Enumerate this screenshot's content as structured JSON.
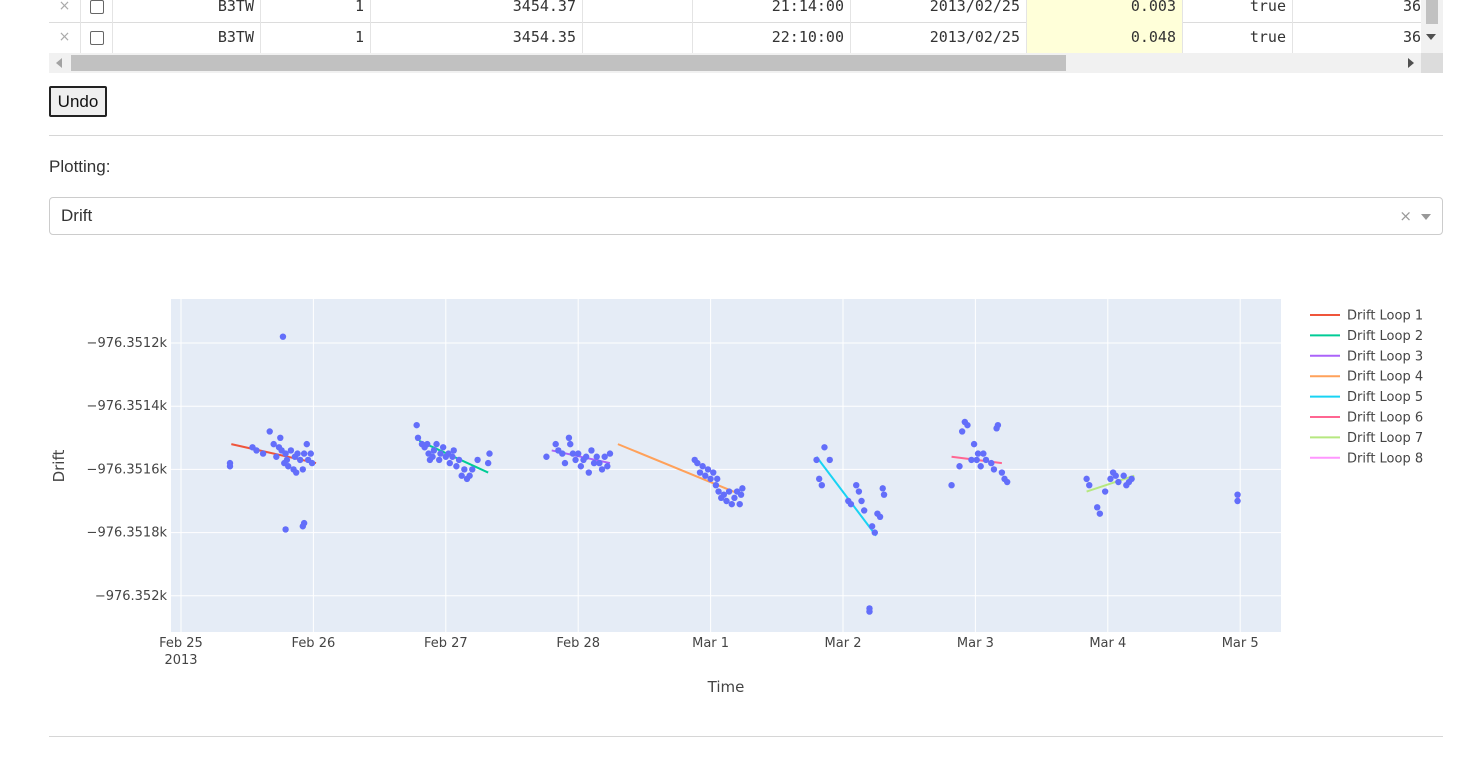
{
  "table": {
    "rows": [
      {
        "delete": "×",
        "station": "B3TW",
        "loop": "1",
        "value": "3454.37",
        "blank": "",
        "time": "21:14:00",
        "date": "2013/02/25",
        "drift": "0.003",
        "keep": "true",
        "last": "36"
      },
      {
        "delete": "×",
        "station": "B3TW",
        "loop": "1",
        "value": "3454.35",
        "blank": "",
        "time": "22:10:00",
        "date": "2013/02/25",
        "drift": "0.048",
        "keep": "true",
        "last": "36"
      }
    ]
  },
  "controls": {
    "undo_label": "Undo",
    "plotting_label": "Plotting:",
    "plot_select": {
      "value": "Drift",
      "clear": "×"
    }
  },
  "chart_data": {
    "type": "scatter",
    "xlabel": "Time",
    "ylabel": "Drift",
    "x_ticks": [
      {
        "v": 0,
        "label": "Feb 25",
        "sub": "2013"
      },
      {
        "v": 1,
        "label": "Feb 26"
      },
      {
        "v": 2,
        "label": "Feb 27"
      },
      {
        "v": 3,
        "label": "Feb 28"
      },
      {
        "v": 4,
        "label": "Mar 1"
      },
      {
        "v": 5,
        "label": "Mar 2"
      },
      {
        "v": 6,
        "label": "Mar 3"
      },
      {
        "v": 7,
        "label": "Mar 4"
      },
      {
        "v": 8,
        "label": "Mar 5"
      }
    ],
    "y_ticks": [
      {
        "v": -976.3512,
        "label": "−976.3512k"
      },
      {
        "v": -976.3514,
        "label": "−976.3514k"
      },
      {
        "v": -976.3516,
        "label": "−976.3516k"
      },
      {
        "v": -976.3518,
        "label": "−976.3518k"
      },
      {
        "v": -976.352,
        "label": "−976.352k"
      }
    ],
    "x_range_days_since_feb25": [
      -0.08,
      8.32
    ],
    "y_range": [
      -976.35211,
      -976.351
    ],
    "grid": true,
    "legend_position": "right",
    "point_color": "#636efa",
    "points": [
      [
        0.37,
        -976.35158
      ],
      [
        0.37,
        -976.35159
      ],
      [
        0.54,
        -976.35153
      ],
      [
        0.57,
        -976.35154
      ],
      [
        0.62,
        -976.35155
      ],
      [
        0.67,
        -976.35148
      ],
      [
        0.7,
        -976.35152
      ],
      [
        0.72,
        -976.35156
      ],
      [
        0.74,
        -976.35153
      ],
      [
        0.75,
        -976.3515
      ],
      [
        0.76,
        -976.35154
      ],
      [
        0.78,
        -976.35158
      ],
      [
        0.79,
        -976.35155
      ],
      [
        0.8,
        -976.35157
      ],
      [
        0.81,
        -976.35159
      ],
      [
        0.83,
        -976.35154
      ],
      [
        0.85,
        -976.3516
      ],
      [
        0.86,
        -976.35156
      ],
      [
        0.87,
        -976.35161
      ],
      [
        0.88,
        -976.35155
      ],
      [
        0.9,
        -976.35157
      ],
      [
        0.92,
        -976.3516
      ],
      [
        0.93,
        -976.35155
      ],
      [
        0.95,
        -976.35152
      ],
      [
        0.96,
        -976.35157
      ],
      [
        0.98,
        -976.35155
      ],
      [
        0.99,
        -976.35158
      ],
      [
        0.79,
        -976.35179
      ],
      [
        0.77,
        -976.35118
      ],
      [
        0.92,
        -976.35178
      ],
      [
        0.93,
        -976.35177
      ],
      [
        1.78,
        -976.35146
      ],
      [
        1.79,
        -976.3515
      ],
      [
        1.82,
        -976.35152
      ],
      [
        1.84,
        -976.35153
      ],
      [
        1.86,
        -976.35152
      ],
      [
        1.87,
        -976.35155
      ],
      [
        1.88,
        -976.35157
      ],
      [
        1.9,
        -976.35156
      ],
      [
        1.91,
        -976.35154
      ],
      [
        1.93,
        -976.35152
      ],
      [
        1.95,
        -976.35157
      ],
      [
        1.96,
        -976.35155
      ],
      [
        1.98,
        -976.35153
      ],
      [
        2.0,
        -976.35156
      ],
      [
        2.02,
        -976.35155
      ],
      [
        2.03,
        -976.35158
      ],
      [
        2.05,
        -976.35156
      ],
      [
        2.06,
        -976.35154
      ],
      [
        2.08,
        -976.35159
      ],
      [
        2.1,
        -976.35157
      ],
      [
        2.12,
        -976.35162
      ],
      [
        2.14,
        -976.3516
      ],
      [
        2.16,
        -976.35163
      ],
      [
        2.18,
        -976.35162
      ],
      [
        2.2,
        -976.3516
      ],
      [
        2.24,
        -976.35157
      ],
      [
        2.32,
        -976.35158
      ],
      [
        2.33,
        -976.35155
      ],
      [
        2.76,
        -976.35156
      ],
      [
        2.83,
        -976.35152
      ],
      [
        2.85,
        -976.35154
      ],
      [
        2.88,
        -976.35155
      ],
      [
        2.9,
        -976.35158
      ],
      [
        2.93,
        -976.3515
      ],
      [
        2.94,
        -976.35152
      ],
      [
        2.96,
        -976.35155
      ],
      [
        2.98,
        -976.35157
      ],
      [
        3.0,
        -976.35155
      ],
      [
        3.02,
        -976.35159
      ],
      [
        3.04,
        -976.35157
      ],
      [
        3.06,
        -976.35156
      ],
      [
        3.08,
        -976.35161
      ],
      [
        3.1,
        -976.35154
      ],
      [
        3.12,
        -976.35158
      ],
      [
        3.14,
        -976.35156
      ],
      [
        3.16,
        -976.35158
      ],
      [
        3.18,
        -976.3516
      ],
      [
        3.2,
        -976.35156
      ],
      [
        3.22,
        -976.35159
      ],
      [
        3.24,
        -976.35155
      ],
      [
        3.88,
        -976.35157
      ],
      [
        3.9,
        -976.35158
      ],
      [
        3.92,
        -976.35161
      ],
      [
        3.94,
        -976.35159
      ],
      [
        3.96,
        -976.35162
      ],
      [
        3.98,
        -976.3516
      ],
      [
        4.0,
        -976.35163
      ],
      [
        4.02,
        -976.35161
      ],
      [
        4.04,
        -976.35165
      ],
      [
        4.05,
        -976.35163
      ],
      [
        4.06,
        -976.35167
      ],
      [
        4.08,
        -976.35169
      ],
      [
        4.1,
        -976.35168
      ],
      [
        4.12,
        -976.3517
      ],
      [
        4.14,
        -976.35167
      ],
      [
        4.16,
        -976.35171
      ],
      [
        4.18,
        -976.35169
      ],
      [
        4.2,
        -976.35167
      ],
      [
        4.22,
        -976.35171
      ],
      [
        4.23,
        -976.35168
      ],
      [
        4.24,
        -976.35166
      ],
      [
        4.8,
        -976.35157
      ],
      [
        4.82,
        -976.35163
      ],
      [
        4.84,
        -976.35165
      ],
      [
        4.86,
        -976.35153
      ],
      [
        4.9,
        -976.35157
      ],
      [
        5.04,
        -976.3517
      ],
      [
        5.06,
        -976.35171
      ],
      [
        5.1,
        -976.35165
      ],
      [
        5.12,
        -976.35167
      ],
      [
        5.14,
        -976.3517
      ],
      [
        5.16,
        -976.35173
      ],
      [
        5.2,
        -976.35204
      ],
      [
        5.2,
        -976.35205
      ],
      [
        5.22,
        -976.35178
      ],
      [
        5.24,
        -976.3518
      ],
      [
        5.26,
        -976.35174
      ],
      [
        5.28,
        -976.35175
      ],
      [
        5.3,
        -976.35166
      ],
      [
        5.31,
        -976.35168
      ],
      [
        5.82,
        -976.35165
      ],
      [
        5.88,
        -976.35159
      ],
      [
        5.9,
        -976.35148
      ],
      [
        5.92,
        -976.35145
      ],
      [
        5.94,
        -976.35146
      ],
      [
        5.97,
        -976.35157
      ],
      [
        5.99,
        -976.35152
      ],
      [
        6.01,
        -976.35157
      ],
      [
        6.02,
        -976.35155
      ],
      [
        6.04,
        -976.35159
      ],
      [
        6.06,
        -976.35155
      ],
      [
        6.08,
        -976.35157
      ],
      [
        6.12,
        -976.35158
      ],
      [
        6.14,
        -976.3516
      ],
      [
        6.16,
        -976.35147
      ],
      [
        6.17,
        -976.35146
      ],
      [
        6.2,
        -976.35161
      ],
      [
        6.22,
        -976.35163
      ],
      [
        6.24,
        -976.35164
      ],
      [
        6.84,
        -976.35163
      ],
      [
        6.86,
        -976.35165
      ],
      [
        6.92,
        -976.35172
      ],
      [
        6.94,
        -976.35174
      ],
      [
        6.98,
        -976.35167
      ],
      [
        7.02,
        -976.35163
      ],
      [
        7.04,
        -976.35161
      ],
      [
        7.06,
        -976.35162
      ],
      [
        7.08,
        -976.35164
      ],
      [
        7.12,
        -976.35162
      ],
      [
        7.14,
        -976.35165
      ],
      [
        7.16,
        -976.35164
      ],
      [
        7.18,
        -976.35163
      ],
      [
        7.98,
        -976.35168
      ],
      [
        7.98,
        -976.3517
      ]
    ],
    "series": [
      {
        "name": "Drift Loop 1",
        "color": "#ef553b",
        "line": [
          [
            0.38,
            -976.35152
          ],
          [
            1.02,
            -976.35158
          ]
        ]
      },
      {
        "name": "Drift Loop 2",
        "color": "#00cc96",
        "line": [
          [
            1.8,
            -976.35151
          ],
          [
            2.32,
            -976.35161
          ]
        ]
      },
      {
        "name": "Drift Loop 3",
        "color": "#ab63fa",
        "line": [
          [
            2.8,
            -976.35154
          ],
          [
            3.24,
            -976.35158
          ]
        ]
      },
      {
        "name": "Drift Loop 4",
        "color": "#ffa15a",
        "line": [
          [
            3.3,
            -976.35152
          ],
          [
            4.23,
            -976.35168
          ]
        ]
      },
      {
        "name": "Drift Loop 5",
        "color": "#19d3f3",
        "line": [
          [
            4.8,
            -976.35156
          ],
          [
            5.25,
            -976.35181
          ]
        ]
      },
      {
        "name": "Drift Loop 6",
        "color": "#ff6692",
        "line": [
          [
            5.82,
            -976.35156
          ],
          [
            6.2,
            -976.35158
          ]
        ]
      },
      {
        "name": "Drift Loop 7",
        "color": "#b6e880",
        "line": [
          [
            6.84,
            -976.35167
          ],
          [
            7.2,
            -976.35162
          ]
        ]
      },
      {
        "name": "Drift Loop 8",
        "color": "#ff97ff",
        "line": [
          [
            7.99,
            -976.35168
          ],
          [
            7.99,
            -976.3517
          ]
        ]
      }
    ]
  }
}
